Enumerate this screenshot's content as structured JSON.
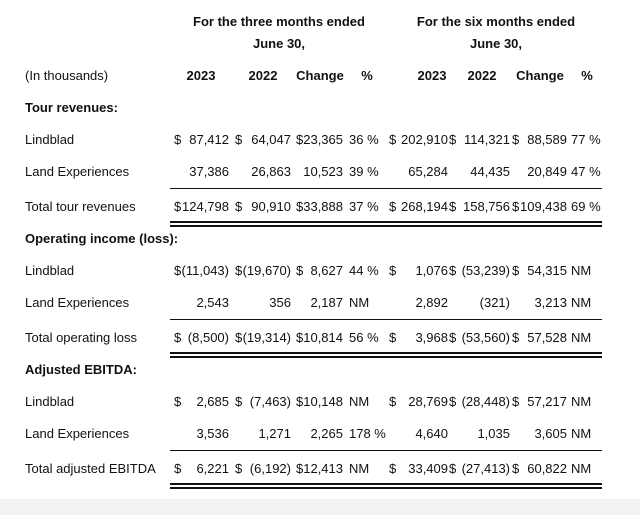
{
  "header": {
    "three_months": [
      "For the three months ended",
      "June 30,"
    ],
    "six_months": [
      "For the six months ended",
      "June 30,"
    ]
  },
  "columns": {
    "label": "(In thousands)",
    "three": [
      "2023",
      "2022",
      "Change",
      "%"
    ],
    "six": [
      "2023",
      "2022",
      "Change",
      "%"
    ]
  },
  "sections": [
    {
      "title": "Tour revenues:",
      "rows": [
        {
          "label": "Lindblad",
          "cells": [
            {
              "sign": "$",
              "text": "87,412"
            },
            {
              "sign": "$",
              "text": "64,047"
            },
            {
              "sign": "$",
              "text": "23,365"
            },
            {
              "text": "36 %"
            },
            {
              "sign": "$",
              "text": "202,910"
            },
            {
              "sign": "$",
              "text": "114,321"
            },
            {
              "sign": "$",
              "text": "88,589"
            },
            {
              "text": "77 %"
            }
          ]
        },
        {
          "label": "Land Experiences",
          "cells": [
            {
              "text": "37,386"
            },
            {
              "text": "26,863"
            },
            {
              "text": "10,523"
            },
            {
              "text": "39 %"
            },
            {
              "text": "65,284"
            },
            {
              "text": "44,435"
            },
            {
              "text": "20,849"
            },
            {
              "text": "47 %"
            }
          ]
        },
        {
          "label": "Total tour revenues",
          "cells": [
            {
              "sign": "$",
              "text": "124,798"
            },
            {
              "sign": "$",
              "text": "90,910"
            },
            {
              "sign": "$",
              "text": "33,888"
            },
            {
              "text": "37 %"
            },
            {
              "sign": "$",
              "text": "268,194"
            },
            {
              "sign": "$",
              "text": "158,756"
            },
            {
              "sign": "$",
              "text": "109,438"
            },
            {
              "text": "69 %"
            }
          ]
        }
      ]
    },
    {
      "title": "Operating income (loss):",
      "rows": [
        {
          "label": "Lindblad",
          "cells": [
            {
              "sign": "$",
              "text": "(11,043)"
            },
            {
              "sign": "$",
              "text": "(19,670)"
            },
            {
              "sign": "$",
              "text": "8,627"
            },
            {
              "text": "44 %"
            },
            {
              "sign": "$",
              "text": "1,076"
            },
            {
              "sign": "$",
              "text": "(53,239)"
            },
            {
              "sign": "$",
              "text": "54,315"
            },
            {
              "text": "NM"
            }
          ]
        },
        {
          "label": "Land Experiences",
          "cells": [
            {
              "text": "2,543"
            },
            {
              "text": "356"
            },
            {
              "text": "2,187"
            },
            {
              "text": "NM"
            },
            {
              "text": "2,892"
            },
            {
              "text": "(321)"
            },
            {
              "text": "3,213"
            },
            {
              "text": "NM"
            }
          ]
        },
        {
          "label": "Total operating loss",
          "cells": [
            {
              "sign": "$",
              "text": "(8,500)"
            },
            {
              "sign": "$",
              "text": "(19,314)"
            },
            {
              "sign": "$",
              "text": "10,814"
            },
            {
              "text": "56 %"
            },
            {
              "sign": "$",
              "text": "3,968"
            },
            {
              "sign": "$",
              "text": "(53,560)"
            },
            {
              "sign": "$",
              "text": "57,528"
            },
            {
              "text": "NM"
            }
          ]
        }
      ]
    },
    {
      "title": "Adjusted EBITDA:",
      "rows": [
        {
          "label": "Lindblad",
          "cells": [
            {
              "sign": "$",
              "text": "2,685"
            },
            {
              "sign": "$",
              "text": "(7,463)"
            },
            {
              "sign": "$",
              "text": "10,148"
            },
            {
              "text": "NM"
            },
            {
              "sign": "$",
              "text": "28,769"
            },
            {
              "sign": "$",
              "text": "(28,448)"
            },
            {
              "sign": "$",
              "text": "57,217"
            },
            {
              "text": "NM"
            }
          ]
        },
        {
          "label": "Land Experiences",
          "cells": [
            {
              "text": "3,536"
            },
            {
              "text": "1,271"
            },
            {
              "text": "2,265"
            },
            {
              "text": "178 %"
            },
            {
              "text": "4,640"
            },
            {
              "text": "1,035"
            },
            {
              "text": "3,605"
            },
            {
              "text": "NM"
            }
          ]
        },
        {
          "label": "Total adjusted EBITDA",
          "cells": [
            {
              "sign": "$",
              "text": "6,221"
            },
            {
              "sign": "$",
              "text": "(6,192)"
            },
            {
              "sign": "$",
              "text": "12,413"
            },
            {
              "text": "NM"
            },
            {
              "sign": "$",
              "text": "33,409"
            },
            {
              "sign": "$",
              "text": "(27,413)"
            },
            {
              "sign": "$",
              "text": "60,822"
            },
            {
              "text": "NM"
            }
          ]
        }
      ]
    }
  ]
}
